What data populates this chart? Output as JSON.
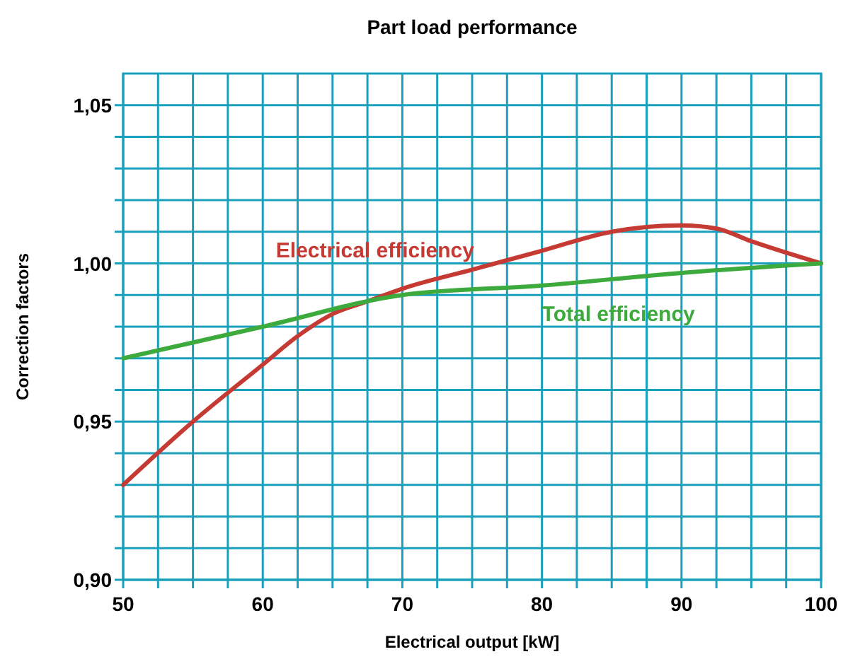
{
  "chart_data": {
    "type": "line",
    "title": "Part load performance",
    "xlabel": "Electrical output [kW]",
    "ylabel": "Correction factors",
    "xlim": [
      50,
      100
    ],
    "xticks": [
      50,
      {
        "value": 52.5,
        "label": null
      },
      {
        "value": 55,
        "label": null
      },
      {
        "value": 57.5,
        "label": null
      },
      60,
      {
        "value": 62.5,
        "label": null
      },
      {
        "value": 65,
        "label": null
      },
      {
        "value": 67.5,
        "label": null
      },
      70,
      {
        "value": 72.5,
        "label": null
      },
      {
        "value": 75,
        "label": null
      },
      {
        "value": 77.5,
        "label": null
      },
      80,
      {
        "value": 82.5,
        "label": null
      },
      {
        "value": 85,
        "label": null
      },
      {
        "value": 87.5,
        "label": null
      },
      90,
      {
        "value": 92.5,
        "label": null
      },
      {
        "value": 95,
        "label": null
      },
      {
        "value": 97.5,
        "label": null
      },
      100
    ],
    "ylim": [
      0.9,
      1.06
    ],
    "yticks": [
      {
        "value": 0.9,
        "label": "0,90"
      },
      {
        "value": 0.91,
        "label": null
      },
      {
        "value": 0.92,
        "label": null
      },
      {
        "value": 0.93,
        "label": null
      },
      {
        "value": 0.94,
        "label": null
      },
      {
        "value": 0.95,
        "label": "0,95"
      },
      {
        "value": 0.96,
        "label": null
      },
      {
        "value": 0.97,
        "label": null
      },
      {
        "value": 0.98,
        "label": null
      },
      {
        "value": 0.99,
        "label": null
      },
      {
        "value": 1.0,
        "label": "1,00"
      },
      {
        "value": 1.01,
        "label": null
      },
      {
        "value": 1.02,
        "label": null
      },
      {
        "value": 1.03,
        "label": null
      },
      {
        "value": 1.04,
        "label": null
      },
      {
        "value": 1.05,
        "label": "1,05"
      }
    ],
    "grid": true,
    "marker": "none",
    "line_style": "solid",
    "series": [
      {
        "name": "Electrical efficiency",
        "color": "#c63a34",
        "x": [
          50,
          55,
          60,
          62.5,
          65,
          67.5,
          70,
          75,
          80,
          85,
          90,
          92.5,
          95,
          100
        ],
        "values": [
          0.93,
          0.95,
          0.968,
          0.977,
          0.984,
          0.988,
          0.992,
          0.998,
          1.004,
          1.01,
          1.012,
          1.011,
          1.007,
          1.0
        ]
      },
      {
        "name": "Total efficiency",
        "color": "#3caa3c",
        "x": [
          50,
          60,
          70,
          80,
          90,
          100
        ],
        "values": [
          0.97,
          0.98,
          0.99,
          0.993,
          0.997,
          1.0
        ]
      }
    ]
  }
}
